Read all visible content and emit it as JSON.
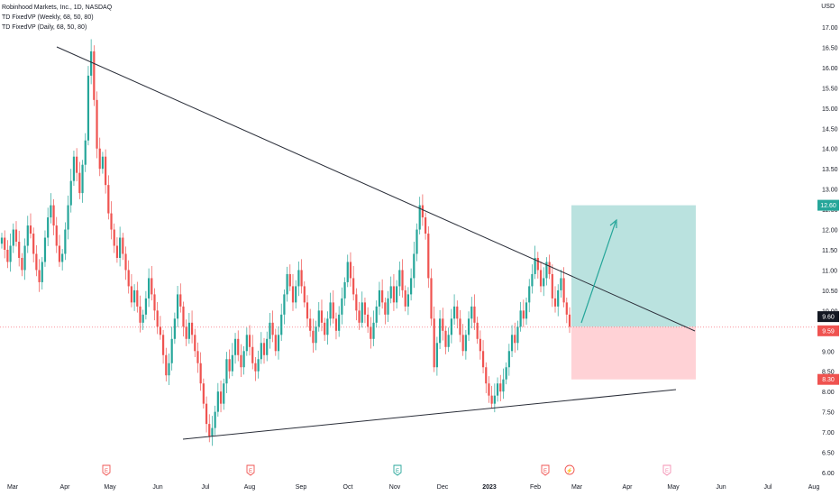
{
  "header": {
    "title": "Robinhood Markets, Inc., 1D, NASDAQ",
    "indicator_weekly": "TD FixedVP (Weekly, 68, 50, 80)",
    "indicator_daily": "TD FixedVP (Daily, 68, 50, 80)",
    "currency": "USD"
  },
  "chart_data": {
    "type": "candlestick",
    "y_axis": {
      "min": 6.0,
      "max": 17.5,
      "ticks": [
        "17.00",
        "16.50",
        "16.00",
        "15.50",
        "15.00",
        "14.50",
        "14.00",
        "13.50",
        "13.00",
        "12.50",
        "12.00",
        "11.50",
        "11.00",
        "10.50",
        "10.00",
        "9.50",
        "9.00",
        "8.50",
        "8.00",
        "7.50",
        "7.00",
        "6.50",
        "6.00"
      ]
    },
    "x_axis": {
      "ticks": [
        "Mar",
        "Apr",
        "May",
        "Jun",
        "Jul",
        "Aug",
        "Sep",
        "Oct",
        "Nov",
        "Dec",
        "2023",
        "Feb",
        "Mar",
        "Apr",
        "May",
        "Jun",
        "Jul",
        "Aug"
      ]
    },
    "price_labels": {
      "target": "12.60",
      "current": "9.60",
      "entry": "9.59",
      "stop": "8.30"
    },
    "position": {
      "entry": 9.6,
      "target": 12.6,
      "stop": 8.3
    },
    "trendlines": [
      {
        "name": "descending resistance",
        "from": [
          "Mar 25 2022",
          16.5
        ],
        "to": [
          "Mar 30 2023",
          9.55
        ]
      },
      {
        "name": "ascending support",
        "from": [
          "Jun 15 2022",
          6.8
        ],
        "to": [
          "Mar 15 2023",
          8.05
        ]
      }
    ],
    "earnings_events": [
      {
        "label": "E",
        "date": "May 2022"
      },
      {
        "label": "E",
        "date": "Aug 2022"
      },
      {
        "label": "E",
        "date": "Nov 2022"
      },
      {
        "label": "E",
        "date": "Feb 2023"
      },
      {
        "label": "⚡",
        "date": "Feb 2023"
      },
      {
        "label": "E",
        "date": "May 2023"
      }
    ],
    "candles_approx": [
      11.8,
      11.5,
      11.2,
      11.6,
      12.0,
      11.7,
      11.3,
      11.0,
      11.6,
      12.1,
      11.9,
      11.4,
      11.0,
      10.7,
      11.2,
      11.8,
      12.3,
      12.6,
      12.1,
      11.6,
      11.2,
      11.4,
      12.0,
      12.6,
      13.2,
      13.8,
      13.4,
      12.9,
      13.6,
      14.2,
      15.8,
      16.4,
      15.2,
      14.0,
      13.5,
      13.8,
      13.1,
      12.4,
      12.0,
      11.6,
      11.3,
      11.8,
      11.4,
      11.0,
      10.6,
      10.2,
      10.5,
      10.1,
      9.7,
      9.9,
      10.3,
      10.8,
      10.4,
      10.0,
      9.6,
      9.4,
      8.9,
      8.4,
      8.7,
      9.3,
      9.8,
      10.4,
      10.1,
      9.6,
      9.3,
      9.7,
      9.4,
      9.0,
      8.7,
      8.2,
      7.7,
      7.2,
      6.9,
      7.1,
      7.5,
      8.0,
      7.7,
      8.2,
      8.8,
      8.5,
      8.9,
      9.3,
      8.9,
      8.6,
      9.0,
      9.4,
      9.1,
      8.7,
      8.5,
      8.8,
      9.2,
      8.9,
      9.3,
      9.7,
      9.4,
      9.0,
      9.4,
      9.9,
      10.4,
      10.9,
      10.6,
      10.2,
      10.6,
      11.0,
      10.6,
      10.2,
      9.8,
      9.5,
      9.2,
      9.6,
      10.0,
      9.7,
      9.4,
      9.8,
      10.2,
      9.8,
      9.5,
      9.9,
      10.3,
      10.7,
      11.2,
      10.8,
      10.4,
      10.0,
      9.7,
      10.2,
      9.9,
      9.6,
      9.3,
      9.7,
      10.1,
      10.5,
      10.2,
      9.9,
      10.3,
      10.6,
      10.2,
      10.6,
      11.0,
      10.5,
      10.1,
      10.4,
      10.8,
      11.4,
      12.0,
      12.6,
      12.3,
      11.9,
      10.8,
      9.8,
      8.6,
      9.2,
      9.8,
      9.5,
      9.1,
      9.4,
      9.8,
      10.1,
      9.8,
      9.4,
      9.0,
      9.4,
      9.8,
      10.1,
      9.7,
      9.3,
      9.0,
      8.6,
      8.2,
      7.9,
      7.7,
      7.9,
      8.2,
      8.0,
      8.3,
      8.6,
      9.0,
      9.4,
      9.2,
      9.6,
      10.0,
      9.8,
      10.2,
      10.6,
      10.9,
      11.3,
      11.0,
      10.6,
      10.8,
      11.2,
      10.9,
      10.3,
      10.1,
      10.5,
      10.8,
      10.2,
      9.9,
      9.6
    ]
  }
}
